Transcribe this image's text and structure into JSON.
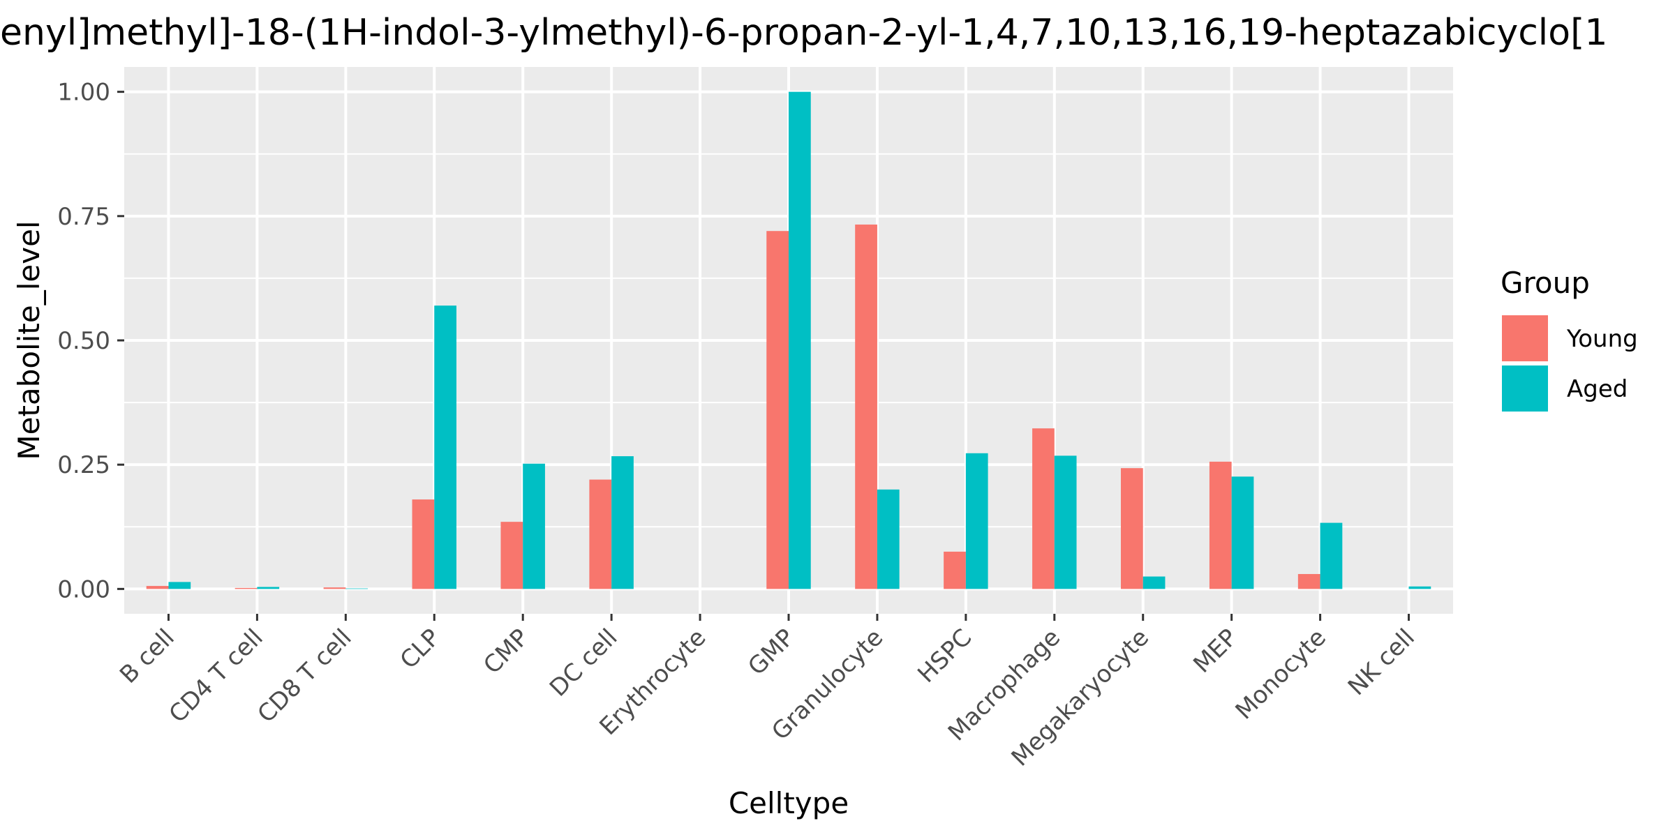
{
  "chart_data": {
    "type": "bar",
    "title": "enyl]methyl]-18-(1H-indol-3-ylmethyl)-6-propan-2-yl-1,4,7,10,13,16,19-heptazabicyclo[1",
    "xlabel": "Celltype",
    "ylabel": "Metabolite_level",
    "ylim": [
      -0.05,
      1.05
    ],
    "yticks": [
      0.0,
      0.25,
      0.5,
      0.75,
      1.0
    ],
    "ytick_labels": [
      "0.00",
      "0.25",
      "0.50",
      "0.75",
      "1.00"
    ],
    "grid": true,
    "legend": {
      "title": "Group",
      "position": "right"
    },
    "categories": [
      "B cell",
      "CD4 T cell",
      "CD8 T cell",
      "CLP",
      "CMP",
      "DC cell",
      "Erythrocyte",
      "GMP",
      "Granulocyte",
      "HSPC",
      "Macrophage",
      "Megakaryocyte",
      "MEP",
      "Monocyte",
      "NK cell"
    ],
    "series": [
      {
        "name": "Young",
        "color": "#F8766D",
        "values": [
          0.006,
          0.002,
          0.003,
          0.18,
          0.135,
          0.22,
          0.0,
          0.72,
          0.733,
          0.075,
          0.323,
          0.243,
          0.256,
          0.03,
          0.0
        ]
      },
      {
        "name": "Aged",
        "color": "#00BFC4",
        "values": [
          0.014,
          0.004,
          0.001,
          0.57,
          0.252,
          0.267,
          0.0,
          1.0,
          0.2,
          0.273,
          0.268,
          0.025,
          0.226,
          0.133,
          0.005
        ]
      }
    ]
  }
}
